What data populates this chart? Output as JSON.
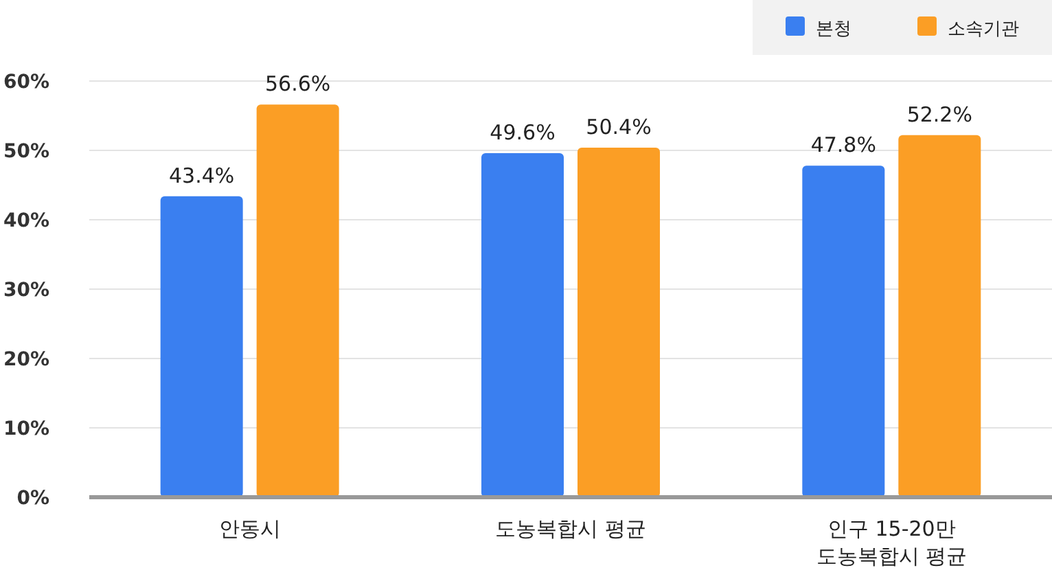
{
  "chart_data": {
    "type": "bar",
    "categories": [
      "안동시",
      "도농복합시 평균",
      "인구 15-20만\n도농복합시 평균"
    ],
    "series": [
      {
        "name": "본청",
        "color": "#3a7ff0",
        "values": [
          43.4,
          49.6,
          47.8
        ]
      },
      {
        "name": "소속기관",
        "color": "#fb9e25",
        "values": [
          56.6,
          50.4,
          52.2
        ]
      }
    ],
    "value_labels": [
      [
        "43.4%",
        "49.6%",
        "47.8%"
      ],
      [
        "56.6%",
        "50.4%",
        "52.2%"
      ]
    ],
    "ylim": [
      0,
      60
    ],
    "yticks": [
      {
        "value": 0,
        "label": "0%"
      },
      {
        "value": 10,
        "label": "10%"
      },
      {
        "value": 20,
        "label": "20%"
      },
      {
        "value": 30,
        "label": "30%"
      },
      {
        "value": 40,
        "label": "40%"
      },
      {
        "value": 50,
        "label": "50%"
      },
      {
        "value": 60,
        "label": "60%"
      }
    ],
    "grid": "y",
    "legend": "top right"
  }
}
